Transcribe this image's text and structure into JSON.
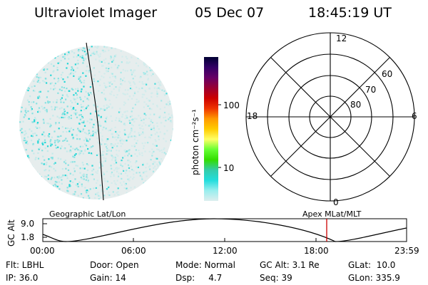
{
  "header": {
    "instrument": "Ultraviolet Imager",
    "date": "05 Dec 07",
    "time": "18:45:19 UT"
  },
  "colorbar": {
    "unit_label": "photon cm⁻²s⁻¹",
    "ticks": [
      {
        "label": "100",
        "value": 100
      },
      {
        "label": "10",
        "value": 10
      }
    ],
    "colors": [
      "#000033",
      "#330066",
      "#660066",
      "#990033",
      "#cc0000",
      "#ee3300",
      "#ff9900",
      "#ffcc00",
      "#ffff66",
      "#66ff33",
      "#33dd00",
      "#33ccaa",
      "#22dddd",
      "#99eeee",
      "#ddeeee"
    ]
  },
  "polar_plot": {
    "mlt_labels": {
      "top": "12",
      "left": "18",
      "right": "6",
      "bottom": "0"
    },
    "lat_labels": [
      "60",
      "70",
      "80"
    ]
  },
  "timeline": {
    "title_left": "Geographic Lat/Lon",
    "title_right": "Apex MLat/MLT",
    "ylabel": "GC Alt",
    "y_ticks": [
      "9.0",
      "1.8"
    ],
    "x_ticks": [
      "00:00",
      "06:00",
      "12:00",
      "18:00",
      "23:59"
    ],
    "marker_color": "#cc0000"
  },
  "footer": {
    "filter": "Flt: LBHL",
    "door": "Door: Open",
    "mode": "Mode: Normal",
    "gc_alt": "GC Alt: 3.1 Re",
    "glat": "GLat:  10.0",
    "ip": "IP: 36.0",
    "gain": "Gain: 14",
    "dsp": "Dsp:     4.7",
    "seq": "Seq: 39",
    "glon": "GLon: 335.9"
  }
}
